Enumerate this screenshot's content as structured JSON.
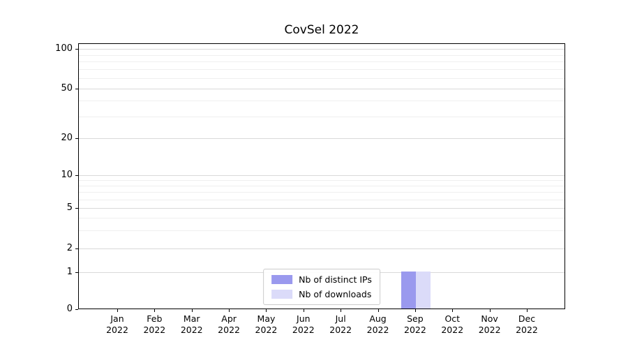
{
  "chart_data": {
    "type": "bar",
    "title": "CovSel 2022",
    "categories": [
      {
        "month": "Jan",
        "year": "2022"
      },
      {
        "month": "Feb",
        "year": "2022"
      },
      {
        "month": "Mar",
        "year": "2022"
      },
      {
        "month": "Apr",
        "year": "2022"
      },
      {
        "month": "May",
        "year": "2022"
      },
      {
        "month": "Jun",
        "year": "2022"
      },
      {
        "month": "Jul",
        "year": "2022"
      },
      {
        "month": "Aug",
        "year": "2022"
      },
      {
        "month": "Sep",
        "year": "2022"
      },
      {
        "month": "Oct",
        "year": "2022"
      },
      {
        "month": "Nov",
        "year": "2022"
      },
      {
        "month": "Dec",
        "year": "2022"
      }
    ],
    "series": [
      {
        "name": "Nb of distinct IPs",
        "color": "#9a99ee",
        "values": [
          0,
          0,
          0,
          0,
          0,
          0,
          0,
          0,
          1,
          0,
          0,
          0
        ]
      },
      {
        "name": "Nb of downloads",
        "color": "#dbdbf9",
        "values": [
          0,
          0,
          0,
          0,
          0,
          0,
          0,
          0,
          1,
          0,
          0,
          0
        ]
      }
    ],
    "yaxis": {
      "scale": "symlog",
      "tick_labels": [
        "100",
        "50",
        "20",
        "10",
        "5",
        "2",
        "1",
        "0"
      ],
      "range": [
        0,
        100
      ]
    },
    "xlabel": "",
    "ylabel": "",
    "grid": true,
    "legend": {
      "position": "lower center (inside plot)",
      "entries": [
        "Nb of distinct IPs",
        "Nb of downloads"
      ]
    }
  }
}
